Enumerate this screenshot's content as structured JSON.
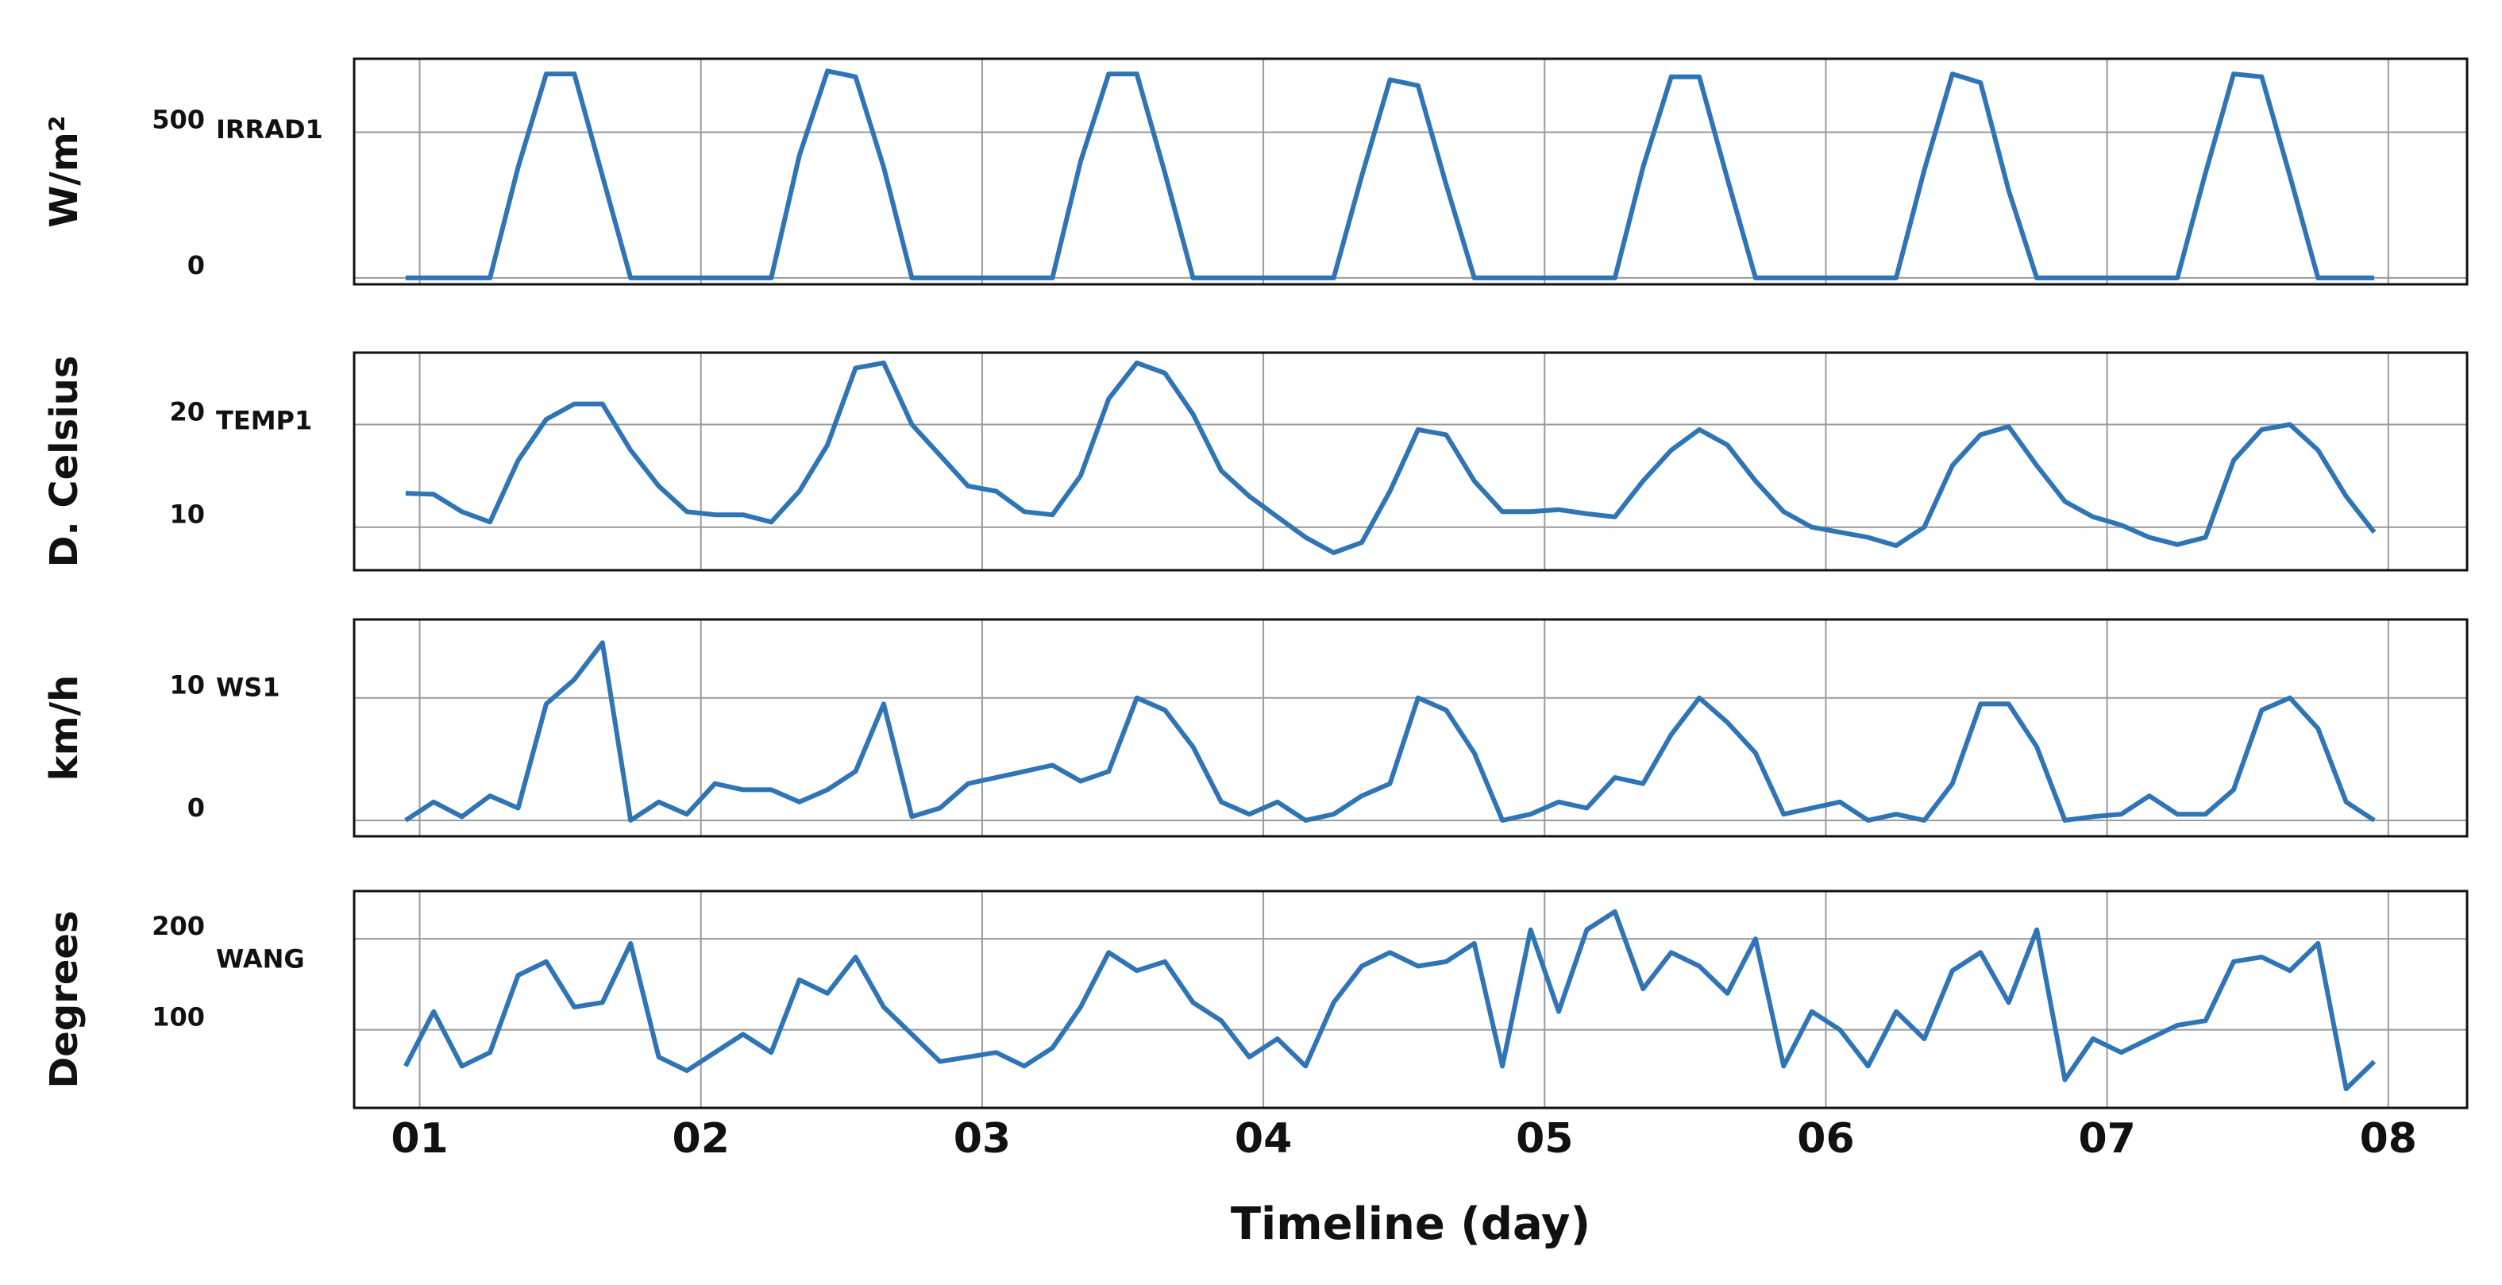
{
  "chart_data": [
    {
      "type": "line",
      "ylabel": "W/m²",
      "ylim": [
        -22,
        752
      ],
      "yticks": [
        0,
        500
      ],
      "xlim": [
        0.767,
        8.28
      ],
      "grid": true,
      "x": [
        0.95,
        1.05,
        1.15,
        1.25,
        1.35,
        1.45,
        1.55,
        1.65,
        1.75,
        1.85,
        1.95,
        2.05,
        2.15,
        2.25,
        2.35,
        2.45,
        2.55,
        2.65,
        2.75,
        2.85,
        2.95,
        3.05,
        3.15,
        3.25,
        3.35,
        3.45,
        3.55,
        3.65,
        3.75,
        3.85,
        3.95,
        4.05,
        4.15,
        4.25,
        4.35,
        4.45,
        4.55,
        4.65,
        4.75,
        4.85,
        4.95,
        5.05,
        5.15,
        5.25,
        5.35,
        5.45,
        5.55,
        5.65,
        5.75,
        5.85,
        5.95,
        6.05,
        6.15,
        6.25,
        6.35,
        6.45,
        6.55,
        6.65,
        6.75,
        6.85,
        6.95,
        7.05,
        7.15,
        7.25,
        7.35,
        7.45,
        7.55,
        7.65,
        7.75,
        7.85,
        7.95
      ],
      "series": [
        {
          "name": "IRRAD1",
          "color": "#2f75b5",
          "values": [
            0,
            0,
            0,
            0,
            380,
            700,
            700,
            350,
            0,
            0,
            0,
            0,
            0,
            0,
            420,
            710,
            690,
            380,
            0,
            0,
            0,
            0,
            0,
            0,
            400,
            700,
            700,
            360,
            0,
            0,
            0,
            0,
            0,
            0,
            350,
            680,
            660,
            320,
            0,
            0,
            0,
            0,
            0,
            0,
            380,
            690,
            690,
            340,
            0,
            0,
            0,
            0,
            0,
            0,
            370,
            700,
            670,
            300,
            0,
            0,
            0,
            0,
            0,
            0,
            360,
            700,
            690,
            350,
            0,
            0,
            0
          ]
        }
      ]
    },
    {
      "type": "line",
      "ylabel": "D. Celsius",
      "ylim": [
        5.8,
        27
      ],
      "yticks": [
        10,
        20
      ],
      "xlim": [
        0.767,
        8.28
      ],
      "grid": true,
      "x": [
        0.95,
        1.05,
        1.15,
        1.25,
        1.35,
        1.45,
        1.55,
        1.65,
        1.75,
        1.85,
        1.95,
        2.05,
        2.15,
        2.25,
        2.35,
        2.45,
        2.55,
        2.65,
        2.75,
        2.85,
        2.95,
        3.05,
        3.15,
        3.25,
        3.35,
        3.45,
        3.55,
        3.65,
        3.75,
        3.85,
        3.95,
        4.05,
        4.15,
        4.25,
        4.35,
        4.45,
        4.55,
        4.65,
        4.75,
        4.85,
        4.95,
        5.05,
        5.15,
        5.25,
        5.35,
        5.45,
        5.55,
        5.65,
        5.75,
        5.85,
        5.95,
        6.05,
        6.15,
        6.25,
        6.35,
        6.45,
        6.55,
        6.65,
        6.75,
        6.85,
        6.95,
        7.05,
        7.15,
        7.25,
        7.35,
        7.45,
        7.55,
        7.65,
        7.75,
        7.85,
        7.95
      ],
      "series": [
        {
          "name": "TEMP1",
          "color": "#2f75b5",
          "values": [
            13.3,
            13.2,
            11.5,
            10.5,
            16.5,
            20.5,
            22,
            22,
            17.5,
            14,
            11.5,
            11.2,
            11.2,
            10.5,
            13.5,
            18,
            25.5,
            26,
            20,
            17,
            14,
            13.5,
            11.5,
            11.2,
            15,
            22.5,
            26,
            25,
            21,
            15.5,
            13,
            11,
            9,
            7.5,
            8.5,
            13.5,
            19.5,
            19,
            14.5,
            11.5,
            11.5,
            11.7,
            11.3,
            11,
            14.5,
            17.5,
            19.5,
            18,
            14.5,
            11.5,
            10,
            9.5,
            9,
            8.2,
            10,
            16,
            19,
            19.8,
            16,
            12.5,
            11,
            10.2,
            9,
            8.3,
            9,
            16.5,
            19.5,
            20,
            17.5,
            13,
            9.5
          ]
        }
      ]
    },
    {
      "type": "line",
      "ylabel": "km/h",
      "ylim": [
        -1.3,
        16.4
      ],
      "yticks": [
        0,
        10
      ],
      "xlim": [
        0.767,
        8.28
      ],
      "grid": true,
      "x": [
        0.95,
        1.05,
        1.15,
        1.25,
        1.35,
        1.45,
        1.55,
        1.65,
        1.75,
        1.85,
        1.95,
        2.05,
        2.15,
        2.25,
        2.35,
        2.45,
        2.55,
        2.65,
        2.75,
        2.85,
        2.95,
        3.05,
        3.15,
        3.25,
        3.35,
        3.45,
        3.55,
        3.65,
        3.75,
        3.85,
        3.95,
        4.05,
        4.15,
        4.25,
        4.35,
        4.45,
        4.55,
        4.65,
        4.75,
        4.85,
        4.95,
        5.05,
        5.15,
        5.25,
        5.35,
        5.45,
        5.55,
        5.65,
        5.75,
        5.85,
        5.95,
        6.05,
        6.15,
        6.25,
        6.35,
        6.45,
        6.55,
        6.65,
        6.75,
        6.85,
        6.95,
        7.05,
        7.15,
        7.25,
        7.35,
        7.45,
        7.55,
        7.65,
        7.75,
        7.85,
        7.95
      ],
      "series": [
        {
          "name": "WS1",
          "color": "#2f75b5",
          "values": [
            0,
            1.5,
            0.3,
            2,
            1,
            9.5,
            11.5,
            14.5,
            0,
            1.5,
            0.5,
            3,
            2.5,
            2.5,
            1.5,
            2.5,
            4,
            9.5,
            0.3,
            1,
            3,
            3.5,
            4,
            4.5,
            3.2,
            4,
            10,
            9,
            6,
            1.5,
            0.5,
            1.5,
            0,
            0.5,
            2,
            3,
            10,
            9,
            5.5,
            0,
            0.5,
            1.5,
            1,
            3.5,
            3,
            7,
            10,
            8,
            5.5,
            0.5,
            1,
            1.5,
            0,
            0.5,
            0,
            3,
            9.5,
            9.5,
            6,
            0,
            0.3,
            0.5,
            2,
            0.5,
            0.5,
            2.5,
            9,
            10,
            7.5,
            1.5,
            0
          ]
        }
      ]
    },
    {
      "type": "line",
      "ylabel": "Degrees",
      "xlabel": "Timeline (day)",
      "ylim": [
        14,
        252.6
      ],
      "yticks": [
        100,
        200
      ],
      "xlim": [
        0.767,
        8.28
      ],
      "xticks": [
        {
          "value": 1,
          "label": "01"
        },
        {
          "value": 2,
          "label": "02"
        },
        {
          "value": 3,
          "label": "03"
        },
        {
          "value": 4,
          "label": "04"
        },
        {
          "value": 5,
          "label": "05"
        },
        {
          "value": 6,
          "label": "06"
        },
        {
          "value": 7,
          "label": "07"
        },
        {
          "value": 8,
          "label": "08"
        }
      ],
      "grid": true,
      "x": [
        0.95,
        1.05,
        1.15,
        1.25,
        1.35,
        1.45,
        1.55,
        1.65,
        1.75,
        1.85,
        1.95,
        2.05,
        2.15,
        2.25,
        2.35,
        2.45,
        2.55,
        2.65,
        2.75,
        2.85,
        2.95,
        3.05,
        3.15,
        3.25,
        3.35,
        3.45,
        3.55,
        3.65,
        3.75,
        3.85,
        3.95,
        4.05,
        4.15,
        4.25,
        4.35,
        4.45,
        4.55,
        4.65,
        4.75,
        4.85,
        4.95,
        5.05,
        5.15,
        5.25,
        5.35,
        5.45,
        5.55,
        5.65,
        5.75,
        5.85,
        5.95,
        6.05,
        6.15,
        6.25,
        6.35,
        6.45,
        6.55,
        6.65,
        6.75,
        6.85,
        6.95,
        7.05,
        7.15,
        7.25,
        7.35,
        7.45,
        7.55,
        7.65,
        7.75,
        7.85,
        7.95
      ],
      "series": [
        {
          "name": "WANG",
          "color": "#2f75b5",
          "values": [
            60,
            120,
            60,
            75,
            160,
            175,
            125,
            130,
            195,
            70,
            55,
            75,
            95,
            75,
            155,
            140,
            180,
            125,
            95,
            65,
            70,
            75,
            60,
            80,
            125,
            185,
            165,
            175,
            130,
            110,
            70,
            90,
            60,
            130,
            170,
            185,
            170,
            175,
            195,
            60,
            210,
            120,
            210,
            230,
            145,
            185,
            170,
            140,
            200,
            60,
            120,
            100,
            60,
            120,
            90,
            165,
            185,
            130,
            210,
            45,
            90,
            75,
            90,
            105,
            110,
            175,
            180,
            165,
            195,
            35,
            65
          ]
        }
      ]
    }
  ]
}
